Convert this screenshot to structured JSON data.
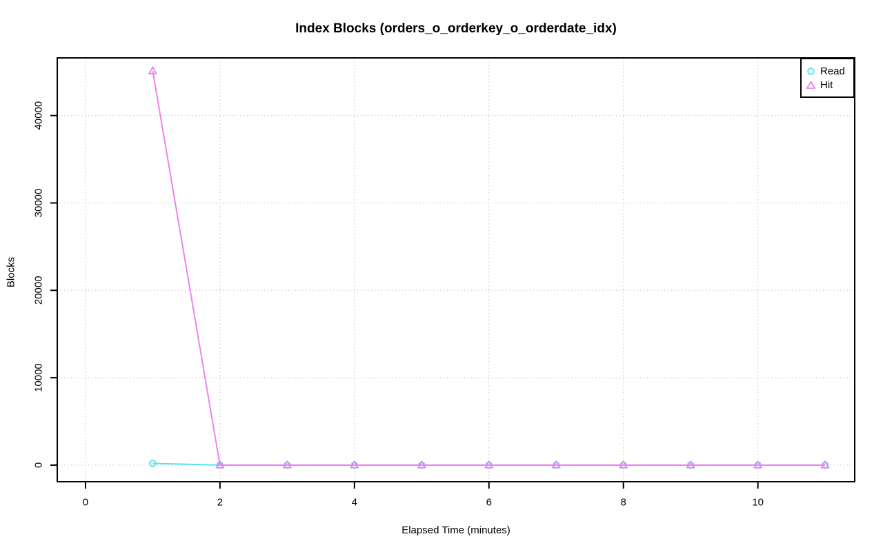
{
  "chart_data": {
    "type": "line",
    "title": "Index Blocks (orders_o_orderkey_o_orderdate_idx)",
    "xlabel": "Elapsed Time (minutes)",
    "ylabel": "Blocks",
    "x": [
      1,
      2,
      3,
      4,
      5,
      6,
      7,
      8,
      9,
      10,
      11
    ],
    "series": [
      {
        "name": "Read",
        "marker": "circle",
        "color": "#58E6EE",
        "values": [
          200,
          0,
          0,
          0,
          0,
          0,
          0,
          0,
          0,
          0,
          0
        ]
      },
      {
        "name": "Hit",
        "marker": "triangle",
        "color": "#EE82EE",
        "values": [
          45100,
          0,
          0,
          0,
          0,
          0,
          0,
          0,
          0,
          0,
          0
        ]
      }
    ],
    "xlim": [
      -0.42,
      11.44
    ],
    "ylim": [
      -1900,
      46600
    ],
    "xticks": [
      0,
      2,
      4,
      6,
      8,
      10
    ],
    "yticks": [
      0,
      10000,
      20000,
      30000,
      40000
    ],
    "grid": "dotted",
    "grid_color": "#c3c3c3",
    "axis_color": "#000000",
    "legend_position": "top-right"
  }
}
